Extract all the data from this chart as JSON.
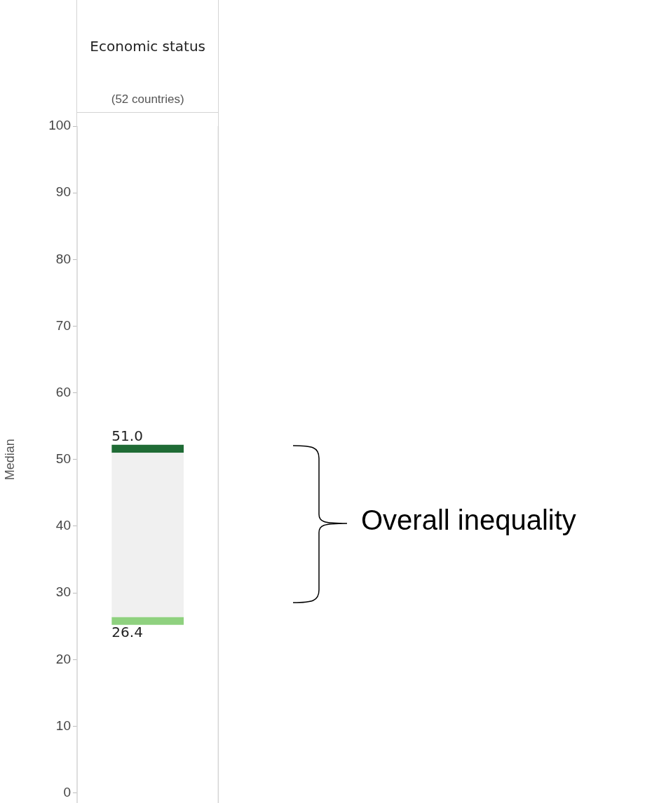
{
  "chart_data": {
    "type": "bar",
    "subtitle": "(52 countries)",
    "ylabel": "Median",
    "categories": [
      "Economic status"
    ],
    "series": [
      {
        "color": "#f0f0f0",
        "base": [
          26.4
        ],
        "values": [
          24.6
        ]
      },
      {
        "color": "#1f6b35",
        "base": [
          51.0
        ],
        "values": [
          1.2
        ]
      },
      {
        "color": "#8fd17f",
        "base": [
          25.2
        ],
        "values": [
          1.2
        ]
      }
    ],
    "ylim": [
      0,
      100
    ],
    "yticks": [
      0,
      10,
      20,
      30,
      40,
      50,
      60,
      70,
      80,
      90,
      100
    ],
    "grid": false,
    "legend": false,
    "annotations": [
      {
        "text": "51.0",
        "x": "Economic status",
        "y": 51.0
      },
      {
        "text": "26.4",
        "x": "Economic status",
        "y": 26.4
      },
      "Overall inequality"
    ]
  }
}
